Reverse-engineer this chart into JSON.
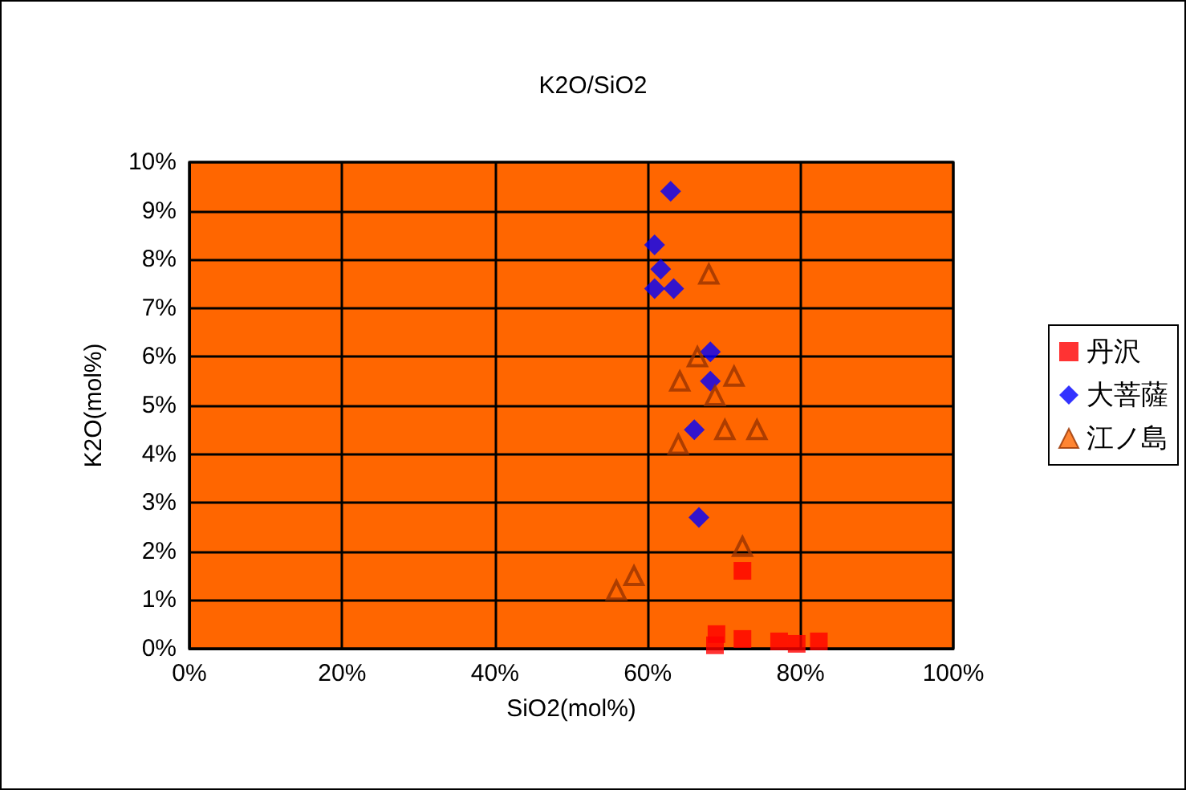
{
  "chart_data": {
    "type": "scatter",
    "title": "K2O/SiO2",
    "xlabel": "SiO2(mol%)",
    "ylabel": "K2O(mol%)",
    "xlim": [
      0,
      100
    ],
    "xticks": [
      {
        "value": 0,
        "label": "0%"
      },
      {
        "value": 20,
        "label": "20%"
      },
      {
        "value": 40,
        "label": "40%"
      },
      {
        "value": 60,
        "label": "60%"
      },
      {
        "value": 80,
        "label": "80%"
      },
      {
        "value": 100,
        "label": "100%"
      }
    ],
    "ylim": [
      0,
      10
    ],
    "yticks": [
      {
        "value": 0,
        "label": "0%"
      },
      {
        "value": 1,
        "label": "1%"
      },
      {
        "value": 2,
        "label": "2%"
      },
      {
        "value": 3,
        "label": "3%"
      },
      {
        "value": 4,
        "label": "4%"
      },
      {
        "value": 5,
        "label": "5%"
      },
      {
        "value": 6,
        "label": "6%"
      },
      {
        "value": 7,
        "label": "7%"
      },
      {
        "value": 8,
        "label": "8%"
      },
      {
        "value": 9,
        "label": "9%"
      },
      {
        "value": 10,
        "label": "10%"
      }
    ],
    "grid": true,
    "legend": "right",
    "series": [
      {
        "name": "丹沢",
        "color": "#ff0000",
        "marker": "square",
        "x": [
          72.4,
          69.0,
          68.8,
          72.4,
          77.2,
          79.5,
          82.4
        ],
        "values": [
          1.6,
          0.3,
          0.07,
          0.2,
          0.15,
          0.1,
          0.15
        ]
      },
      {
        "name": "大菩薩",
        "color": "#0000ff",
        "marker": "diamond",
        "x": [
          63.0,
          60.9,
          61.7,
          60.9,
          63.4,
          68.2,
          68.2,
          66.1,
          66.7
        ],
        "values": [
          9.4,
          8.3,
          7.8,
          7.4,
          7.4,
          6.1,
          5.5,
          4.5,
          2.7
        ]
      },
      {
        "name": "江ノ島",
        "color": "#993300",
        "marker": "triangle",
        "x": [
          68.0,
          66.5,
          64.2,
          71.3,
          68.8,
          70.1,
          74.3,
          64.0,
          72.4,
          58.2,
          55.9
        ],
        "values": [
          7.7,
          6.0,
          5.5,
          5.6,
          5.2,
          4.5,
          4.5,
          4.2,
          2.1,
          1.5,
          1.2
        ]
      }
    ]
  }
}
